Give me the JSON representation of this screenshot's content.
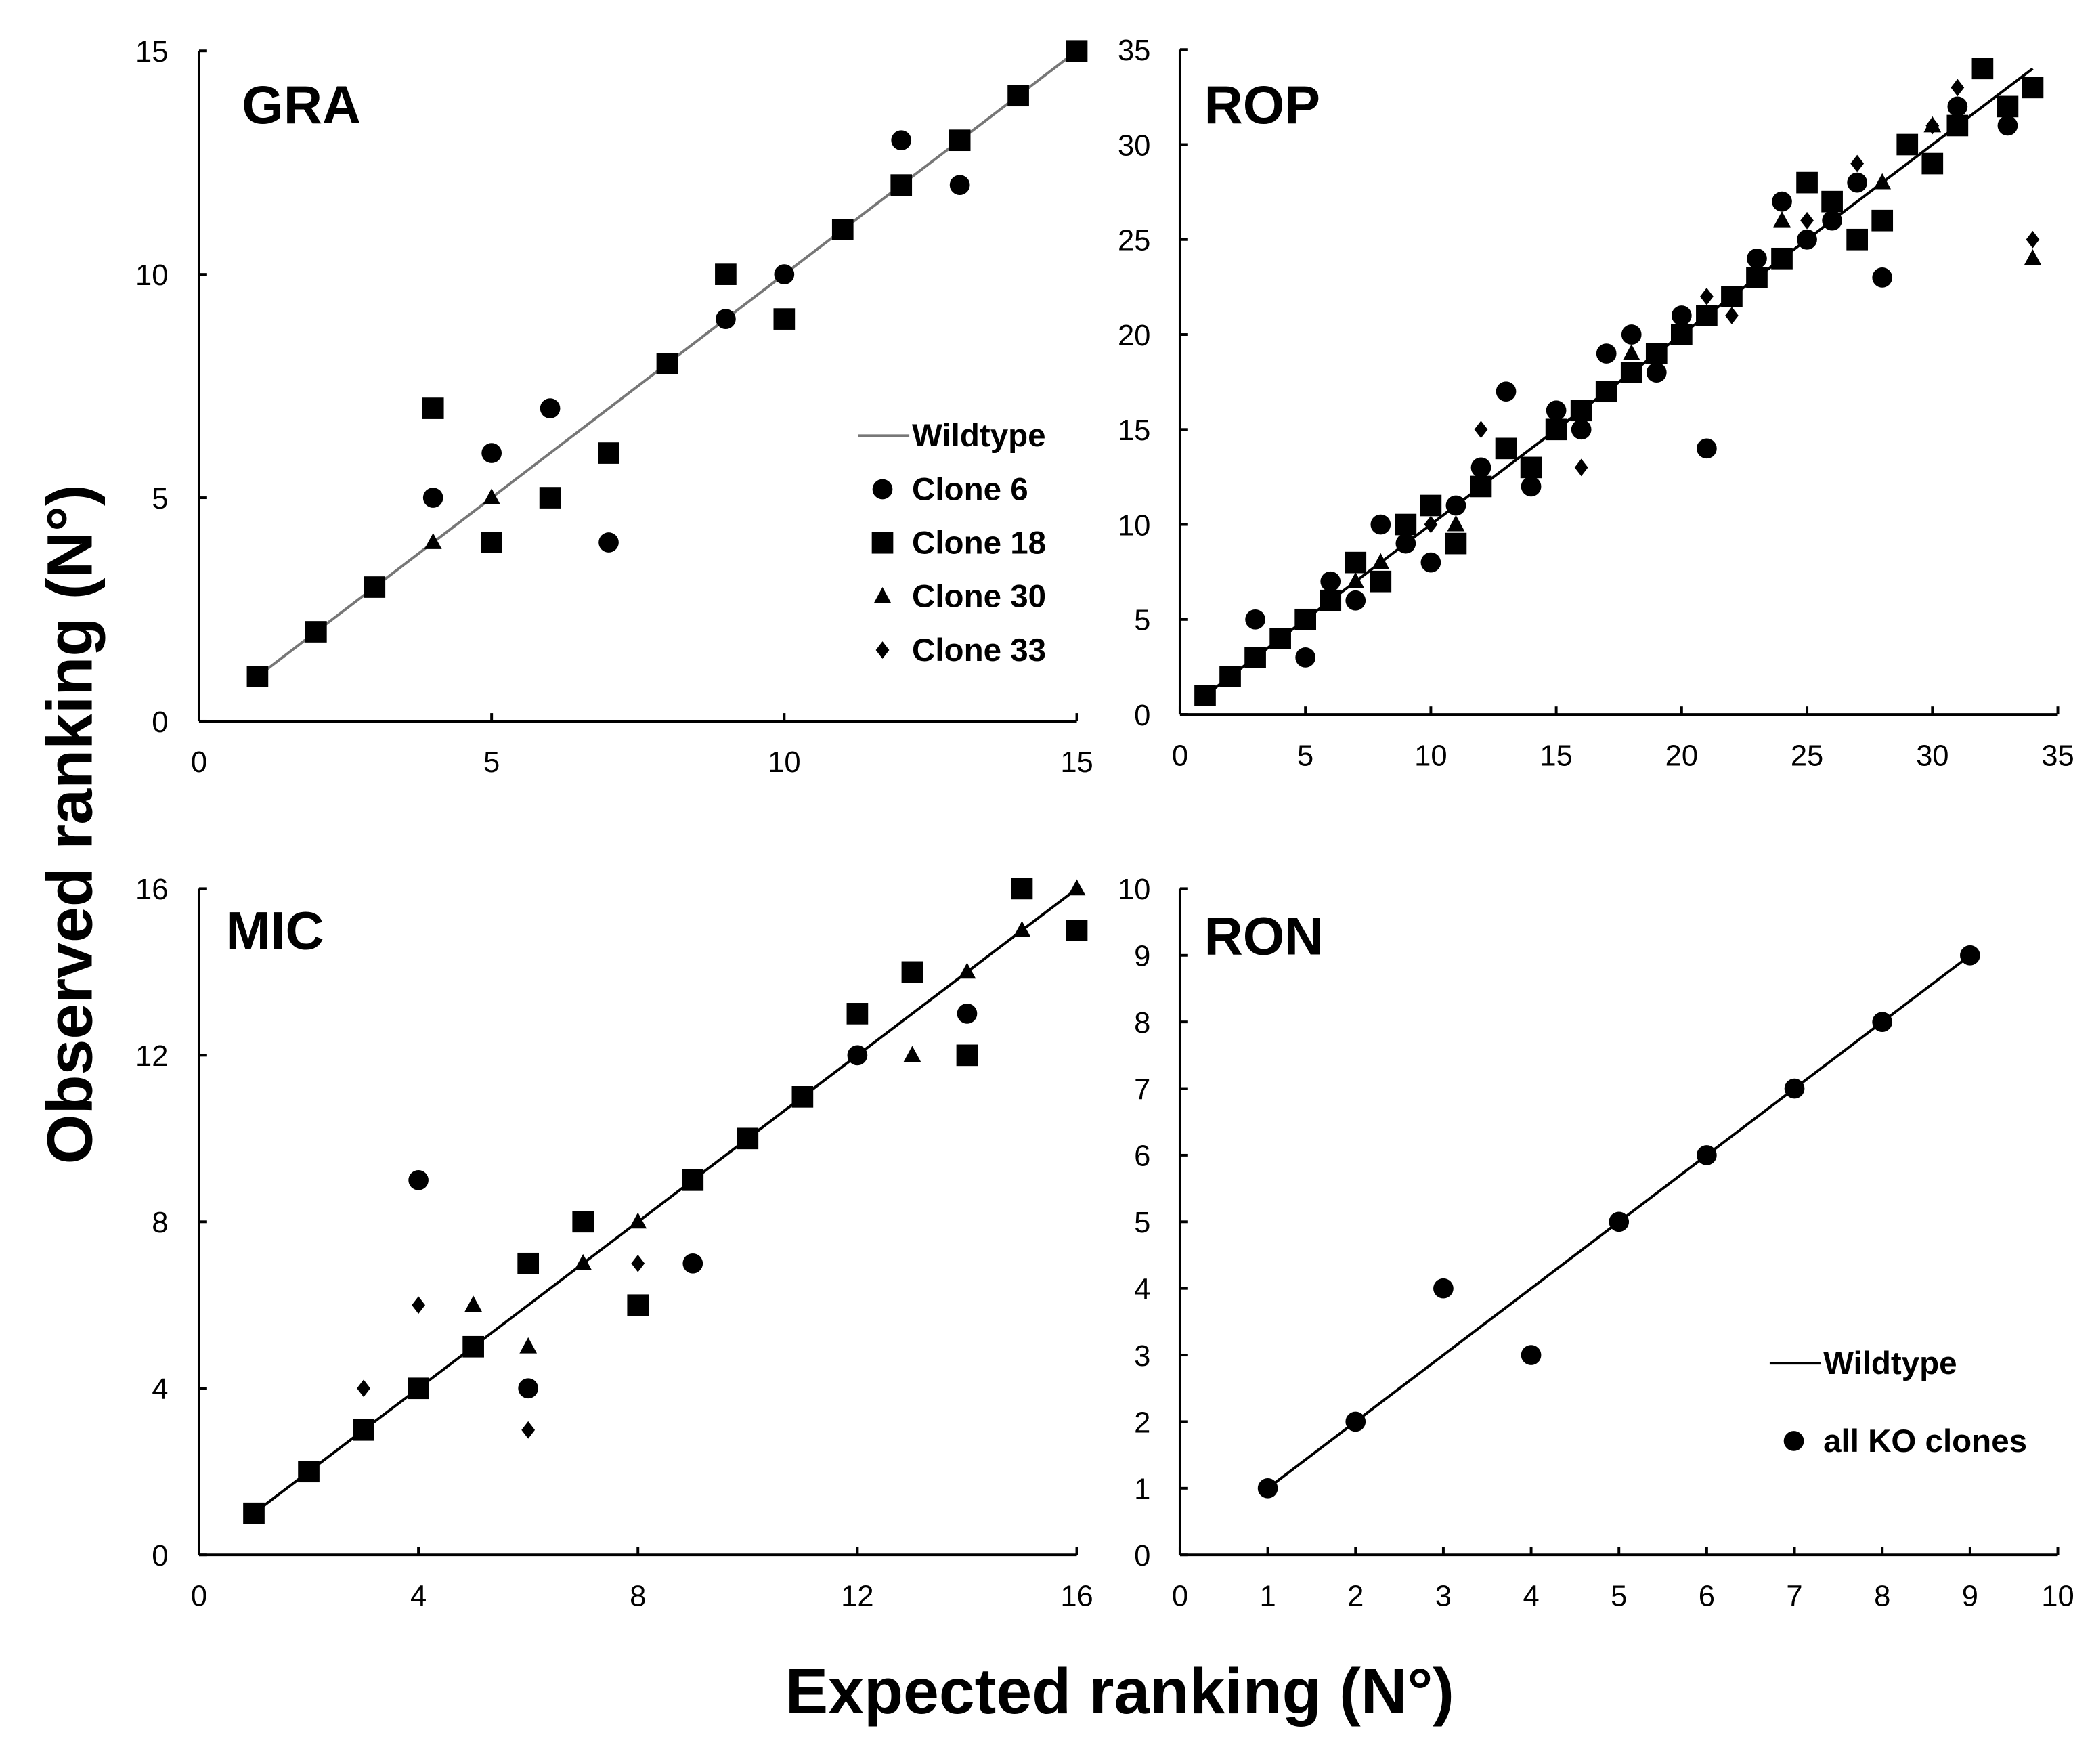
{
  "figure": {
    "ylabel": "Observed ranking (N°)",
    "xlabel": "Expected ranking (N°)"
  },
  "chart_data": [
    {
      "type": "scatter",
      "title": "GRA",
      "xlim": [
        0,
        15
      ],
      "ylim": [
        0,
        15
      ],
      "xticks": [
        0,
        5,
        10,
        15
      ],
      "yticks": [
        0,
        5,
        10,
        15
      ],
      "legend": "right",
      "line": {
        "name": "Wildtype",
        "x": [
          1,
          15
        ],
        "y": [
          1,
          15
        ],
        "color": "#777777"
      },
      "series": [
        {
          "name": "Clone 6",
          "marker": "circle",
          "points": [
            [
              4,
              5
            ],
            [
              5,
              6
            ],
            [
              6,
              7
            ],
            [
              7,
              4
            ],
            [
              9,
              9
            ],
            [
              10,
              10
            ],
            [
              12,
              13
            ],
            [
              13,
              12
            ]
          ]
        },
        {
          "name": "Clone 18",
          "marker": "square",
          "points": [
            [
              1,
              1
            ],
            [
              2,
              2
            ],
            [
              3,
              3
            ],
            [
              4,
              7
            ],
            [
              5,
              4
            ],
            [
              6,
              5
            ],
            [
              7,
              6
            ],
            [
              8,
              8
            ],
            [
              9,
              10
            ],
            [
              10,
              9
            ],
            [
              11,
              11
            ],
            [
              12,
              12
            ],
            [
              13,
              13
            ],
            [
              14,
              14
            ],
            [
              15,
              15
            ]
          ]
        },
        {
          "name": "Clone 30",
          "marker": "triangle",
          "points": [
            [
              4,
              4
            ],
            [
              5,
              5
            ]
          ]
        },
        {
          "name": "Clone 33",
          "marker": "diamond",
          "points": []
        }
      ]
    },
    {
      "type": "scatter",
      "title": "ROP",
      "xlim": [
        0,
        35
      ],
      "ylim": [
        0,
        35
      ],
      "xticks": [
        0,
        5,
        10,
        15,
        20,
        25,
        30,
        35
      ],
      "yticks": [
        0,
        5,
        10,
        15,
        20,
        25,
        30,
        35
      ],
      "line": {
        "x": [
          1,
          34
        ],
        "y": [
          1,
          34
        ],
        "color": "#000000"
      },
      "series": [
        {
          "marker": "circle",
          "points": [
            [
              3,
              5
            ],
            [
              5,
              3
            ],
            [
              6,
              7
            ],
            [
              7,
              6
            ],
            [
              8,
              10
            ],
            [
              9,
              9
            ],
            [
              10,
              8
            ],
            [
              11,
              11
            ],
            [
              12,
              13
            ],
            [
              13,
              17
            ],
            [
              14,
              12
            ],
            [
              15,
              16
            ],
            [
              16,
              15
            ],
            [
              17,
              19
            ],
            [
              18,
              20
            ],
            [
              19,
              18
            ],
            [
              20,
              21
            ],
            [
              21,
              14
            ],
            [
              23,
              24
            ],
            [
              24,
              27
            ],
            [
              25,
              25
            ],
            [
              26,
              26
            ],
            [
              27,
              28
            ],
            [
              28,
              23
            ],
            [
              31,
              32
            ],
            [
              33,
              31
            ]
          ]
        },
        {
          "marker": "square",
          "points": [
            [
              1,
              1
            ],
            [
              2,
              2
            ],
            [
              3,
              3
            ],
            [
              4,
              4
            ],
            [
              5,
              5
            ],
            [
              6,
              6
            ],
            [
              7,
              8
            ],
            [
              8,
              7
            ],
            [
              9,
              10
            ],
            [
              10,
              11
            ],
            [
              11,
              9
            ],
            [
              12,
              12
            ],
            [
              13,
              14
            ],
            [
              14,
              13
            ],
            [
              15,
              15
            ],
            [
              16,
              16
            ],
            [
              17,
              17
            ],
            [
              18,
              18
            ],
            [
              19,
              19
            ],
            [
              20,
              20
            ],
            [
              21,
              21
            ],
            [
              22,
              22
            ],
            [
              23,
              23
            ],
            [
              24,
              24
            ],
            [
              25,
              28
            ],
            [
              26,
              27
            ],
            [
              27,
              25
            ],
            [
              28,
              26
            ],
            [
              29,
              30
            ],
            [
              30,
              29
            ],
            [
              31,
              31
            ],
            [
              32,
              34
            ],
            [
              33,
              32
            ],
            [
              34,
              33
            ]
          ]
        },
        {
          "marker": "triangle",
          "points": [
            [
              7,
              7
            ],
            [
              8,
              8
            ],
            [
              11,
              10
            ],
            [
              18,
              19
            ],
            [
              24,
              26
            ],
            [
              28,
              28
            ],
            [
              30,
              31
            ],
            [
              34,
              24
            ]
          ]
        },
        {
          "marker": "diamond",
          "points": [
            [
              10,
              10
            ],
            [
              12,
              15
            ],
            [
              16,
              13
            ],
            [
              21,
              22
            ],
            [
              22,
              21
            ],
            [
              25,
              26
            ],
            [
              27,
              29
            ],
            [
              30,
              31
            ],
            [
              31,
              33
            ],
            [
              34,
              25
            ]
          ]
        }
      ]
    },
    {
      "type": "scatter",
      "title": "MIC",
      "xlim": [
        0,
        16
      ],
      "ylim": [
        0,
        16
      ],
      "xticks": [
        0,
        4,
        8,
        12,
        16
      ],
      "yticks": [
        0,
        4,
        8,
        12,
        16
      ],
      "line": {
        "x": [
          1,
          16
        ],
        "y": [
          1,
          16
        ],
        "color": "#000000"
      },
      "series": [
        {
          "marker": "circle",
          "points": [
            [
              4,
              9
            ],
            [
              6,
              4
            ],
            [
              9,
              7
            ],
            [
              12,
              12
            ],
            [
              14,
              13
            ]
          ]
        },
        {
          "marker": "square",
          "points": [
            [
              1,
              1
            ],
            [
              2,
              2
            ],
            [
              3,
              3
            ],
            [
              4,
              4
            ],
            [
              5,
              5
            ],
            [
              6,
              7
            ],
            [
              7,
              8
            ],
            [
              8,
              6
            ],
            [
              9,
              9
            ],
            [
              10,
              10
            ],
            [
              11,
              11
            ],
            [
              12,
              13
            ],
            [
              13,
              14
            ],
            [
              14,
              12
            ],
            [
              15,
              16
            ],
            [
              16,
              15
            ]
          ]
        },
        {
          "marker": "triangle",
          "points": [
            [
              5,
              6
            ],
            [
              6,
              5
            ],
            [
              7,
              7
            ],
            [
              8,
              8
            ],
            [
              13,
              12
            ],
            [
              14,
              14
            ],
            [
              15,
              15
            ],
            [
              16,
              16
            ]
          ]
        },
        {
          "marker": "diamond",
          "points": [
            [
              3,
              4
            ],
            [
              4,
              6
            ],
            [
              6,
              3
            ],
            [
              8,
              7
            ]
          ]
        }
      ]
    },
    {
      "type": "scatter",
      "title": "RON",
      "xlim": [
        0,
        10
      ],
      "ylim": [
        0,
        10
      ],
      "xticks": [
        0,
        1,
        2,
        3,
        4,
        5,
        6,
        7,
        8,
        9,
        10
      ],
      "yticks": [
        0,
        1,
        2,
        3,
        4,
        5,
        6,
        7,
        8,
        9,
        10
      ],
      "legend": "bottom-right",
      "line": {
        "name": "Wildtype",
        "x": [
          1,
          9
        ],
        "y": [
          1,
          9
        ],
        "color": "#000000"
      },
      "series": [
        {
          "name": "all KO clones",
          "marker": "circle",
          "points": [
            [
              1,
              1
            ],
            [
              2,
              2
            ],
            [
              3,
              4
            ],
            [
              4,
              3
            ],
            [
              5,
              5
            ],
            [
              6,
              6
            ],
            [
              7,
              7
            ],
            [
              8,
              8
            ],
            [
              9,
              9
            ]
          ]
        }
      ]
    }
  ]
}
